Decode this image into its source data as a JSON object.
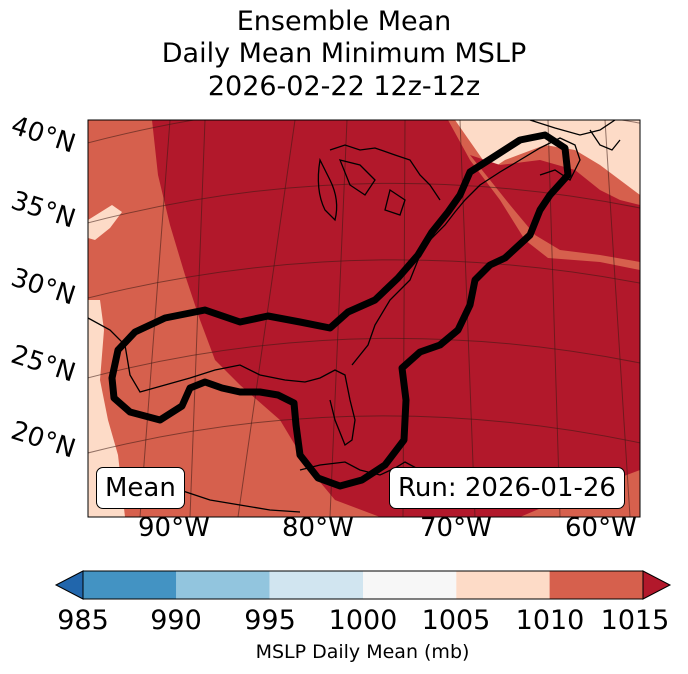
{
  "title": {
    "line1": "Ensemble Mean",
    "line2": "Daily Mean Minimum MSLP",
    "line3": "2026-02-22 12z-12z"
  },
  "map": {
    "lat_labels": [
      "40°N",
      "35°N",
      "30°N",
      "25°N",
      "20°N"
    ],
    "lon_labels": [
      "90°W",
      "80°W",
      "70°W",
      "60°W"
    ],
    "left_box": "Mean",
    "right_box": "Run: 2026-01-26",
    "fill_colors": {
      "low": "#b2182b",
      "mid": "#d6604d",
      "high": "#fddbc7"
    },
    "contour_color": "#000000"
  },
  "colorbar": {
    "label": "MSLP Daily Mean (mb)",
    "ticks": [
      "985",
      "990",
      "995",
      "1000",
      "1005",
      "1010",
      "1015"
    ],
    "colors": [
      "#2166ac",
      "#4393c3",
      "#92c5de",
      "#d1e5f0",
      "#f7f7f7",
      "#fddbc7",
      "#d6604d",
      "#b2182b"
    ]
  }
}
